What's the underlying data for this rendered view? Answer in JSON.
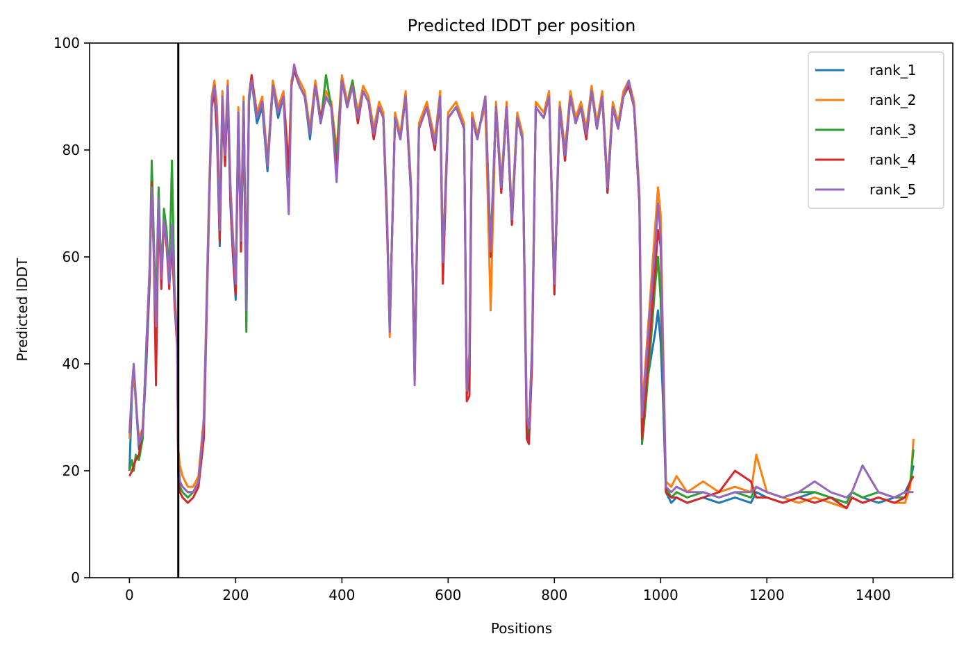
{
  "chart_data": {
    "type": "line",
    "title": "Predicted lDDT per position",
    "xlabel": "Positions",
    "ylabel": "Predicted lDDT",
    "xlim": [
      -75,
      1550
    ],
    "ylim": [
      0,
      100
    ],
    "xticks": [
      0,
      200,
      400,
      600,
      800,
      1000,
      1200,
      1400
    ],
    "yticks": [
      0,
      20,
      40,
      60,
      80,
      100
    ],
    "legend_position": "top-right",
    "grid": false,
    "vertical_line_x": 92,
    "series": [
      {
        "name": "rank_1",
        "color": "#1f77b4"
      },
      {
        "name": "rank_2",
        "color": "#ff7f0e"
      },
      {
        "name": "rank_3",
        "color": "#2ca02c"
      },
      {
        "name": "rank_4",
        "color": "#d62728"
      },
      {
        "name": "rank_5",
        "color": "#9467bd"
      }
    ],
    "x": [
      0,
      5,
      8,
      12,
      18,
      25,
      32,
      38,
      42,
      46,
      50,
      55,
      60,
      65,
      70,
      75,
      80,
      85,
      90,
      92,
      95,
      100,
      110,
      120,
      130,
      140,
      150,
      155,
      160,
      165,
      170,
      175,
      180,
      185,
      190,
      195,
      200,
      205,
      210,
      215,
      220,
      225,
      230,
      240,
      250,
      260,
      270,
      280,
      290,
      300,
      305,
      310,
      320,
      330,
      340,
      350,
      360,
      370,
      380,
      390,
      400,
      410,
      420,
      430,
      440,
      450,
      460,
      470,
      478,
      485,
      490,
      500,
      510,
      520,
      530,
      537,
      545,
      560,
      575,
      585,
      590,
      600,
      615,
      630,
      635,
      640,
      645,
      655,
      670,
      680,
      690,
      700,
      710,
      720,
      730,
      740,
      748,
      752,
      758,
      765,
      780,
      790,
      800,
      810,
      820,
      830,
      840,
      850,
      860,
      870,
      880,
      890,
      900,
      910,
      920,
      930,
      940,
      950,
      960,
      965,
      970,
      980,
      990,
      995,
      1000,
      1005,
      1010,
      1020,
      1030,
      1050,
      1080,
      1110,
      1140,
      1170,
      1180,
      1200,
      1230,
      1260,
      1290,
      1320,
      1350,
      1360,
      1380,
      1410,
      1440,
      1460,
      1470,
      1476
    ],
    "values": [
      [
        20,
        35,
        38,
        33,
        24,
        27,
        40,
        55,
        75,
        62,
        48,
        72,
        55,
        68,
        63,
        55,
        62,
        52,
        44,
        22,
        18,
        17,
        16,
        16,
        18,
        28,
        70,
        88,
        91,
        82,
        62,
        88,
        78,
        92,
        70,
        60,
        52,
        86,
        62,
        88,
        48,
        89,
        93,
        85,
        88,
        76,
        92,
        86,
        90,
        75,
        92,
        95,
        92,
        90,
        82,
        92,
        85,
        90,
        88,
        78,
        93,
        88,
        92,
        86,
        91,
        89,
        82,
        88,
        86,
        66,
        46,
        86,
        82,
        90,
        72,
        37,
        84,
        88,
        80,
        90,
        58,
        86,
        88,
        84,
        34,
        40,
        86,
        82,
        90,
        60,
        88,
        72,
        88,
        66,
        86,
        82,
        28,
        26,
        42,
        88,
        86,
        90,
        53,
        88,
        78,
        90,
        85,
        88,
        82,
        91,
        84,
        90,
        72,
        88,
        84,
        90,
        92,
        88,
        70,
        30,
        34,
        40,
        46,
        50,
        44,
        32,
        16,
        14,
        15,
        14,
        15,
        14,
        15,
        14,
        16,
        15,
        14,
        15,
        16,
        15,
        14,
        16,
        15,
        14,
        15,
        16,
        18,
        21
      ],
      [
        26,
        36,
        38,
        33,
        26,
        28,
        42,
        58,
        72,
        60,
        50,
        70,
        58,
        66,
        62,
        56,
        63,
        54,
        45,
        24,
        21,
        19,
        17,
        17,
        19,
        30,
        72,
        90,
        93,
        88,
        66,
        91,
        80,
        93,
        74,
        64,
        55,
        88,
        64,
        90,
        52,
        90,
        94,
        87,
        90,
        78,
        93,
        88,
        91,
        77,
        93,
        95,
        93,
        91,
        84,
        93,
        86,
        91,
        89,
        80,
        94,
        89,
        93,
        87,
        92,
        90,
        84,
        89,
        87,
        68,
        45,
        87,
        83,
        91,
        74,
        38,
        85,
        89,
        82,
        91,
        60,
        87,
        89,
        85,
        36,
        42,
        87,
        83,
        88,
        50,
        89,
        74,
        89,
        68,
        87,
        83,
        30,
        27,
        44,
        89,
        87,
        91,
        55,
        89,
        80,
        91,
        86,
        89,
        84,
        92,
        85,
        91,
        74,
        89,
        85,
        91,
        93,
        89,
        72,
        32,
        38,
        52,
        66,
        73,
        68,
        42,
        18,
        17,
        19,
        16,
        18,
        16,
        17,
        16,
        23,
        16,
        15,
        14,
        15,
        14,
        13,
        15,
        14,
        15,
        14,
        14,
        17,
        26
      ],
      [
        20,
        22,
        20,
        23,
        22,
        26,
        44,
        57,
        78,
        63,
        50,
        73,
        56,
        69,
        65,
        56,
        78,
        53,
        44,
        20,
        17,
        16,
        15,
        16,
        18,
        28,
        71,
        89,
        92,
        84,
        64,
        89,
        79,
        92,
        72,
        62,
        54,
        87,
        63,
        89,
        46,
        90,
        93,
        86,
        89,
        77,
        92,
        87,
        90,
        76,
        92,
        95,
        92,
        90,
        83,
        92,
        85,
        94,
        88,
        79,
        93,
        88,
        93,
        86,
        91,
        89,
        83,
        88,
        86,
        67,
        47,
        86,
        82,
        90,
        73,
        37,
        84,
        88,
        81,
        90,
        59,
        86,
        88,
        84,
        35,
        38,
        86,
        82,
        90,
        62,
        88,
        73,
        88,
        67,
        86,
        82,
        29,
        27,
        43,
        88,
        86,
        90,
        54,
        88,
        79,
        90,
        85,
        88,
        83,
        91,
        84,
        90,
        73,
        88,
        84,
        90,
        92,
        88,
        71,
        25,
        30,
        42,
        55,
        60,
        52,
        36,
        17,
        15,
        16,
        15,
        16,
        15,
        16,
        15,
        17,
        16,
        15,
        16,
        16,
        15,
        14,
        16,
        15,
        16,
        15,
        15,
        18,
        24
      ],
      [
        19,
        20,
        21,
        22,
        23,
        28,
        42,
        56,
        74,
        60,
        36,
        70,
        54,
        67,
        62,
        54,
        64,
        51,
        43,
        19,
        16,
        15,
        14,
        15,
        17,
        26,
        69,
        88,
        91,
        83,
        63,
        88,
        77,
        91,
        71,
        61,
        53,
        86,
        61,
        88,
        53,
        90,
        94,
        86,
        89,
        77,
        92,
        87,
        90,
        76,
        92,
        95,
        92,
        90,
        83,
        92,
        86,
        90,
        88,
        76,
        93,
        88,
        92,
        85,
        91,
        89,
        82,
        88,
        86,
        65,
        47,
        86,
        82,
        90,
        72,
        38,
        84,
        88,
        80,
        90,
        55,
        86,
        88,
        84,
        33,
        34,
        86,
        82,
        90,
        60,
        88,
        72,
        88,
        66,
        86,
        82,
        26,
        25,
        40,
        88,
        86,
        90,
        53,
        88,
        78,
        90,
        85,
        88,
        82,
        91,
        84,
        90,
        72,
        88,
        84,
        90,
        92,
        88,
        70,
        26,
        32,
        45,
        58,
        65,
        62,
        38,
        16,
        15,
        15,
        14,
        15,
        16,
        20,
        18,
        15,
        15,
        14,
        15,
        14,
        15,
        13,
        15,
        14,
        15,
        14,
        15,
        18,
        19
      ],
      [
        27,
        36,
        40,
        34,
        25,
        27,
        43,
        58,
        73,
        61,
        47,
        71,
        56,
        67,
        63,
        55,
        66,
        53,
        44,
        21,
        18,
        17,
        16,
        16,
        18,
        29,
        70,
        89,
        92,
        86,
        65,
        90,
        79,
        92,
        73,
        63,
        55,
        87,
        63,
        89,
        50,
        90,
        93,
        86,
        89,
        77,
        92,
        87,
        90,
        68,
        92,
        96,
        92,
        90,
        83,
        92,
        85,
        90,
        88,
        74,
        93,
        88,
        92,
        86,
        91,
        89,
        83,
        88,
        86,
        67,
        46,
        86,
        82,
        90,
        73,
        36,
        84,
        88,
        81,
        90,
        59,
        86,
        88,
        84,
        35,
        41,
        86,
        82,
        90,
        61,
        88,
        73,
        88,
        67,
        86,
        82,
        30,
        28,
        43,
        88,
        86,
        90,
        55,
        88,
        79,
        90,
        85,
        88,
        83,
        91,
        84,
        90,
        73,
        88,
        84,
        90,
        93,
        88,
        71,
        30,
        36,
        50,
        62,
        70,
        64,
        40,
        17,
        16,
        17,
        16,
        16,
        15,
        16,
        16,
        17,
        16,
        15,
        16,
        18,
        16,
        15,
        16,
        21,
        16,
        15,
        16,
        16,
        16
      ]
    ]
  }
}
